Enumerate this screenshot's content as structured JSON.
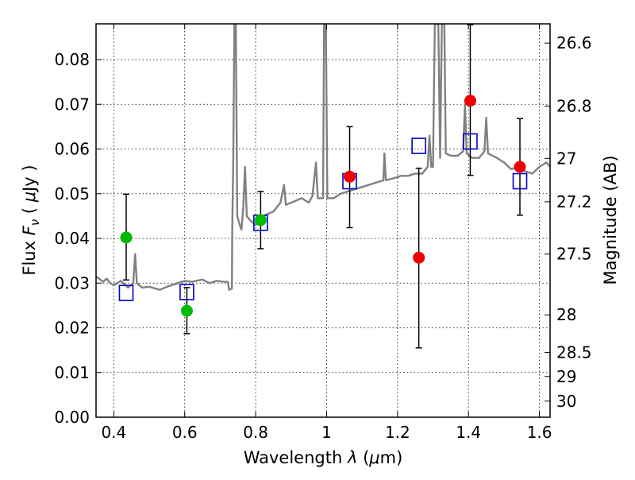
{
  "chart_data": {
    "type": "scatter",
    "xlabel": "Wavelength  λ (μm)",
    "ylabel": "Flux  F_ν  ( μJy )",
    "ylabel_parts": {
      "a": "Flux  ",
      "b": "F",
      "c": "ν",
      "d": "  ( ",
      "e": "μ",
      "f": "Jy )"
    },
    "xlabel_parts": {
      "a": "Wavelength  ",
      "b": "λ",
      "c": " (",
      "d": "μ",
      "e": "m)"
    },
    "y2label": "Magnitude (AB)",
    "xlim": [
      0.35,
      1.63
    ],
    "ylim": [
      0.0,
      0.088
    ],
    "grid": true,
    "grid_style": "dotted",
    "xticks": [
      0.4,
      0.6,
      0.8,
      1.0,
      1.2,
      1.4,
      1.6
    ],
    "xtick_labels": [
      "0.4",
      "0.6",
      "0.8",
      "1",
      "1.2",
      "1.4",
      "1.6"
    ],
    "yticks": [
      0.0,
      0.01,
      0.02,
      0.03,
      0.04,
      0.05,
      0.06,
      0.07,
      0.08
    ],
    "ytick_labels": [
      "0.00",
      "0.01",
      "0.02",
      "0.03",
      "0.04",
      "0.05",
      "0.06",
      "0.07",
      "0.08"
    ],
    "y2ticks": [
      {
        "label": "26.6",
        "flux": 0.0837
      },
      {
        "label": "26.8",
        "flux": 0.0696
      },
      {
        "label": "27",
        "flux": 0.0579
      },
      {
        "label": "27.2",
        "flux": 0.0482
      },
      {
        "label": "27.5",
        "flux": 0.0365
      },
      {
        "label": "28",
        "flux": 0.0229
      },
      {
        "label": "28.5",
        "flux": 0.0145
      },
      {
        "label": "29",
        "flux": 0.0091
      },
      {
        "label": "30",
        "flux": 0.0036
      }
    ],
    "model_spectrum": {
      "color": "#808080",
      "points": [
        [
          0.35,
          0.0315
        ],
        [
          0.37,
          0.0303
        ],
        [
          0.38,
          0.031
        ],
        [
          0.39,
          0.03
        ],
        [
          0.4,
          0.0295
        ],
        [
          0.42,
          0.0305
        ],
        [
          0.44,
          0.029
        ],
        [
          0.455,
          0.03
        ],
        [
          0.46,
          0.0365
        ],
        [
          0.465,
          0.03
        ],
        [
          0.48,
          0.029
        ],
        [
          0.5,
          0.0292
        ],
        [
          0.53,
          0.0285
        ],
        [
          0.55,
          0.0292
        ],
        [
          0.58,
          0.03
        ],
        [
          0.6,
          0.0305
        ],
        [
          0.62,
          0.0303
        ],
        [
          0.65,
          0.0308
        ],
        [
          0.67,
          0.03
        ],
        [
          0.69,
          0.0305
        ],
        [
          0.71,
          0.0303
        ],
        [
          0.722,
          0.0303
        ],
        [
          0.725,
          0.0285
        ],
        [
          0.733,
          0.0288
        ],
        [
          0.734,
          0.042
        ],
        [
          0.737,
          0.058
        ],
        [
          0.74,
          0.088
        ],
        [
          0.744,
          0.088
        ],
        [
          0.748,
          0.045
        ],
        [
          0.755,
          0.043
        ],
        [
          0.76,
          0.042
        ],
        [
          0.765,
          0.047
        ],
        [
          0.77,
          0.056
        ],
        [
          0.775,
          0.045
        ],
        [
          0.785,
          0.044
        ],
        [
          0.8,
          0.043
        ],
        [
          0.82,
          0.045
        ],
        [
          0.85,
          0.046
        ],
        [
          0.87,
          0.048
        ],
        [
          0.88,
          0.052
        ],
        [
          0.885,
          0.0475
        ],
        [
          0.9,
          0.048
        ],
        [
          0.93,
          0.049
        ],
        [
          0.95,
          0.048
        ],
        [
          0.96,
          0.0495
        ],
        [
          0.97,
          0.057
        ],
        [
          0.975,
          0.049
        ],
        [
          0.99,
          0.049
        ],
        [
          0.993,
          0.088
        ],
        [
          0.998,
          0.088
        ],
        [
          1.002,
          0.049
        ],
        [
          1.02,
          0.049
        ],
        [
          1.04,
          0.05
        ],
        [
          1.06,
          0.0505
        ],
        [
          1.08,
          0.051
        ],
        [
          1.1,
          0.0515
        ],
        [
          1.12,
          0.052
        ],
        [
          1.14,
          0.0525
        ],
        [
          1.16,
          0.053
        ],
        [
          1.163,
          0.059
        ],
        [
          1.167,
          0.053
        ],
        [
          1.19,
          0.0535
        ],
        [
          1.21,
          0.054
        ],
        [
          1.23,
          0.054
        ],
        [
          1.25,
          0.0545
        ],
        [
          1.27,
          0.0545
        ],
        [
          1.285,
          0.056
        ],
        [
          1.29,
          0.063
        ],
        [
          1.295,
          0.056
        ],
        [
          1.3,
          0.056
        ],
        [
          1.305,
          0.088
        ],
        [
          1.315,
          0.088
        ],
        [
          1.32,
          0.058
        ],
        [
          1.325,
          0.088
        ],
        [
          1.332,
          0.088
        ],
        [
          1.336,
          0.059
        ],
        [
          1.35,
          0.0585
        ],
        [
          1.37,
          0.0585
        ],
        [
          1.385,
          0.0595
        ],
        [
          1.39,
          0.07
        ],
        [
          1.395,
          0.059
        ],
        [
          1.41,
          0.058
        ],
        [
          1.43,
          0.058
        ],
        [
          1.445,
          0.0595
        ],
        [
          1.45,
          0.067
        ],
        [
          1.455,
          0.059
        ],
        [
          1.48,
          0.058
        ],
        [
          1.5,
          0.057
        ],
        [
          1.52,
          0.0555
        ],
        [
          1.54,
          0.056
        ],
        [
          1.56,
          0.055
        ],
        [
          1.58,
          0.0545
        ],
        [
          1.6,
          0.056
        ],
        [
          1.62,
          0.057
        ],
        [
          1.63,
          0.056
        ]
      ]
    },
    "model_photometry": {
      "marker": "open-square",
      "color": "#0000cc",
      "points": [
        {
          "x": 0.435,
          "y": 0.0278
        },
        {
          "x": 0.606,
          "y": 0.028
        },
        {
          "x": 0.814,
          "y": 0.0435
        },
        {
          "x": 1.065,
          "y": 0.0528
        },
        {
          "x": 1.26,
          "y": 0.0607
        },
        {
          "x": 1.405,
          "y": 0.0617
        },
        {
          "x": 1.545,
          "y": 0.0528
        }
      ]
    },
    "observed_detections": [
      {
        "color": "#00bb00",
        "x": 0.435,
        "y": 0.0402,
        "err_low": 0.0307,
        "err_high": 0.0499
      },
      {
        "color": "#00bb00",
        "x": 0.606,
        "y": 0.0238,
        "err_low": 0.0187,
        "err_high": 0.029
      },
      {
        "color": "#00bb00",
        "x": 0.814,
        "y": 0.0441,
        "err_low": 0.0377,
        "err_high": 0.0505
      },
      {
        "color": "#ee0000",
        "x": 1.065,
        "y": 0.0538,
        "err_low": 0.0424,
        "err_high": 0.065
      },
      {
        "color": "#ee0000",
        "x": 1.26,
        "y": 0.0357,
        "err_low": 0.0155,
        "err_high": 0.0557
      },
      {
        "color": "#ee0000",
        "x": 1.405,
        "y": 0.0708,
        "err_low": 0.0541,
        "err_high": 0.0878
      },
      {
        "color": "#ee0000",
        "x": 1.545,
        "y": 0.056,
        "err_low": 0.0452,
        "err_high": 0.0668
      }
    ]
  }
}
